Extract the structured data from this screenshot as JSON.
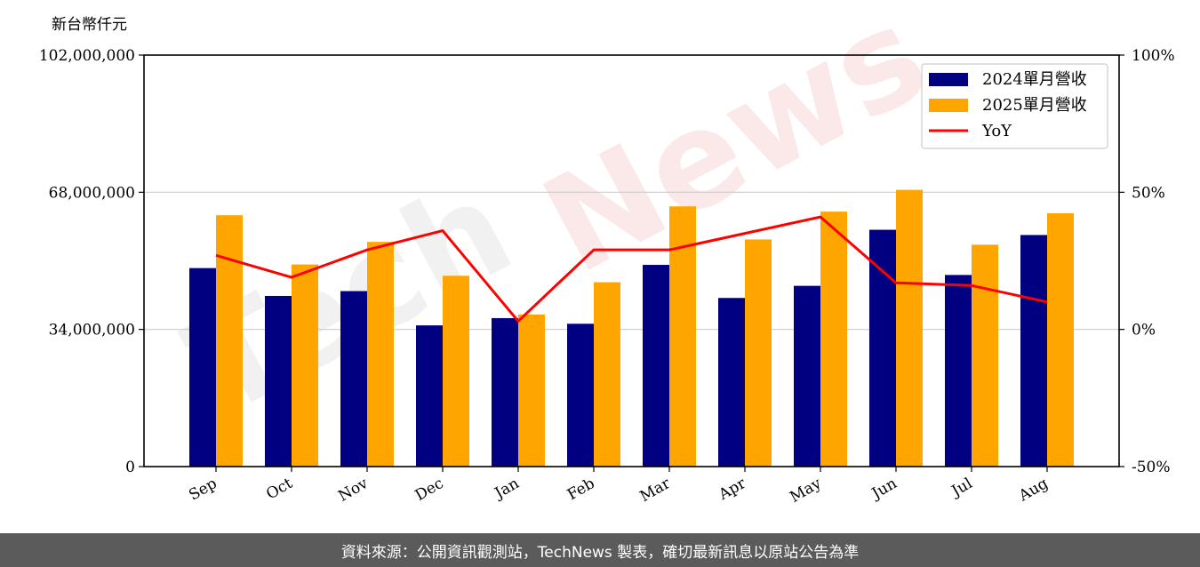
{
  "watermark": {
    "text_tech": "Tech",
    "text_news": "News"
  },
  "footer": {
    "text": "資料來源：公開資訊觀測站，TechNews 製表，確切最新訊息以原站公告為準"
  },
  "colors": {
    "series2024": "#000080",
    "series2025": "#ffa500",
    "yoy": "#ff0000",
    "grid": "#cccccc"
  },
  "chart_data": {
    "type": "bar",
    "unit_label": "新台幣仟元",
    "categories": [
      "Sep",
      "Oct",
      "Nov",
      "Dec",
      "Jan",
      "Feb",
      "Mar",
      "Apr",
      "May",
      "Jun",
      "Jul",
      "Aug"
    ],
    "series": [
      {
        "name": "2024單月營收",
        "type": "bar",
        "axis": "left",
        "values": [
          49200000,
          42300000,
          43500000,
          35000000,
          36800000,
          35400000,
          50000000,
          41800000,
          44800000,
          58700000,
          47500000,
          57400000
        ]
      },
      {
        "name": "2025單月營收",
        "type": "bar",
        "axis": "left",
        "values": [
          62300000,
          50100000,
          55700000,
          47300000,
          37700000,
          45700000,
          64500000,
          56300000,
          63200000,
          68600000,
          55000000,
          62800000
        ]
      },
      {
        "name": "YoY",
        "type": "line",
        "axis": "right",
        "values": [
          27,
          19,
          29,
          36,
          3,
          29,
          29,
          35,
          41,
          17,
          16,
          10
        ]
      }
    ],
    "y_left": {
      "min": 0,
      "max": 102000000,
      "ticks": [
        0,
        34000000,
        68000000,
        102000000
      ],
      "tick_labels": [
        "0",
        "34,000,000",
        "68,000,000",
        "102,000,000"
      ]
    },
    "y_right": {
      "min": -50,
      "max": 100,
      "ticks": [
        -50,
        0,
        50,
        100
      ],
      "tick_labels": [
        "-50%",
        "0%",
        "50%",
        "100%"
      ]
    },
    "grid": "horizontal",
    "legend_position": "top-right"
  }
}
